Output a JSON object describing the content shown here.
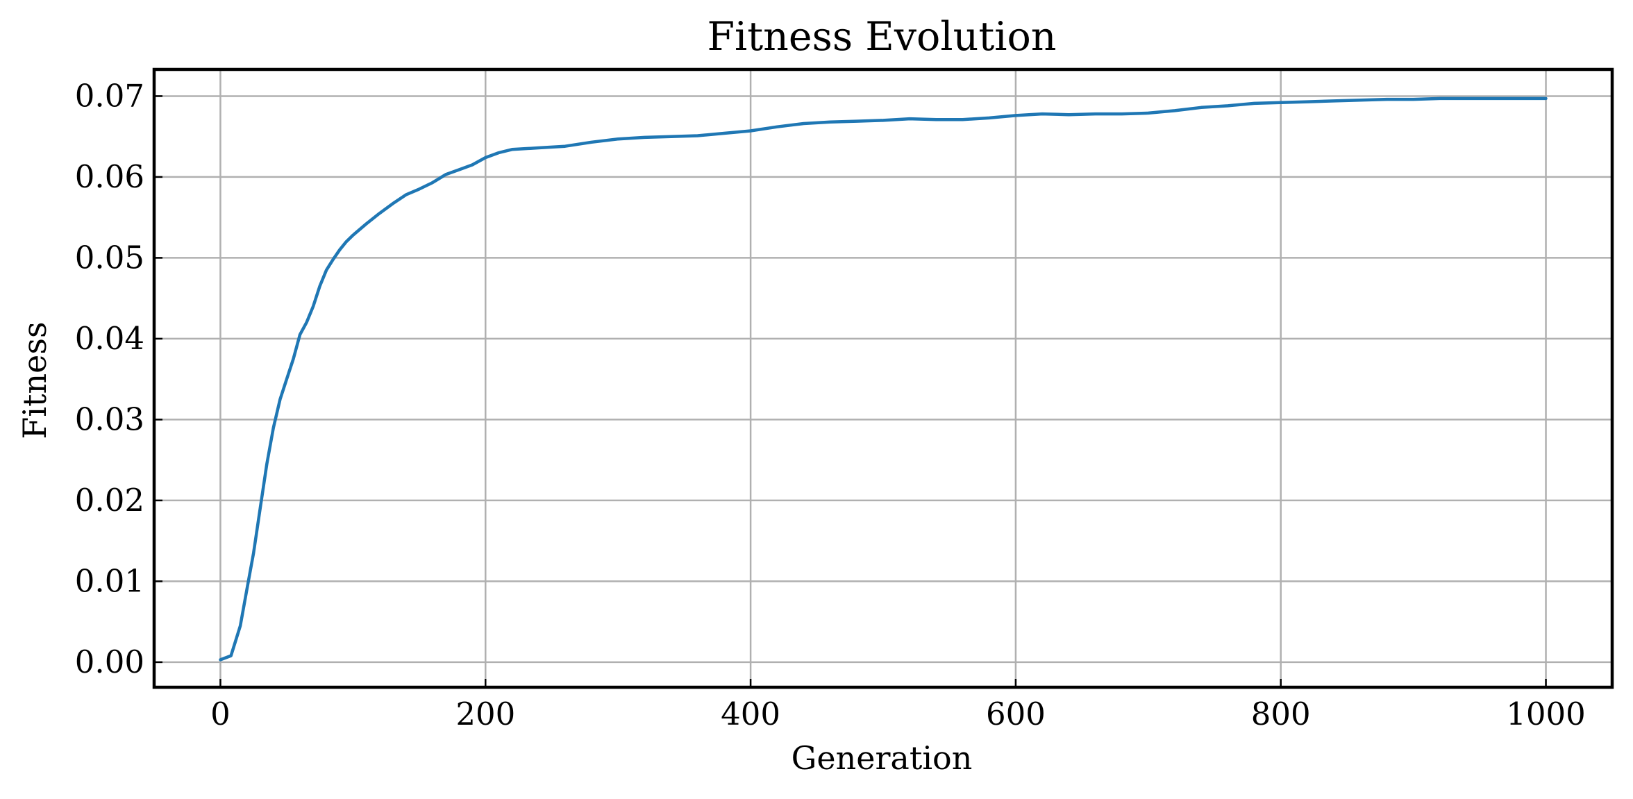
{
  "chart_data": {
    "type": "line",
    "title": "Fitness Evolution",
    "xlabel": "Generation",
    "ylabel": "Fitness",
    "xlim": [
      -50,
      1050
    ],
    "ylim": [
      -0.0031,
      0.0733
    ],
    "xticks": [
      0,
      200,
      400,
      600,
      800,
      1000
    ],
    "xtick_labels": [
      "0",
      "200",
      "400",
      "600",
      "800",
      "1000"
    ],
    "yticks": [
      0.0,
      0.01,
      0.02,
      0.03,
      0.04,
      0.05,
      0.06,
      0.07
    ],
    "ytick_labels": [
      "0.00",
      "0.01",
      "0.02",
      "0.03",
      "0.04",
      "0.05",
      "0.06",
      "0.07"
    ],
    "grid": true,
    "colors": {
      "line": "#1f77b4",
      "grid": "#b0b0b0",
      "axes": "#000000"
    },
    "series": [
      {
        "x": [
          0,
          8,
          15,
          20,
          25,
          30,
          35,
          40,
          45,
          50,
          55,
          60,
          65,
          70,
          75,
          80,
          85,
          90,
          95,
          100,
          110,
          120,
          130,
          140,
          150,
          160,
          170,
          180,
          190,
          200,
          210,
          220,
          240,
          260,
          280,
          300,
          320,
          340,
          360,
          380,
          400,
          420,
          440,
          460,
          480,
          500,
          520,
          540,
          560,
          580,
          600,
          620,
          640,
          660,
          680,
          700,
          720,
          740,
          760,
          780,
          800,
          820,
          840,
          860,
          880,
          900,
          920,
          940,
          960,
          980,
          1000
        ],
        "y": [
          0.0003,
          0.0008,
          0.0045,
          0.009,
          0.0135,
          0.019,
          0.0245,
          0.029,
          0.0325,
          0.035,
          0.0375,
          0.0405,
          0.042,
          0.044,
          0.0465,
          0.0485,
          0.0498,
          0.051,
          0.052,
          0.0528,
          0.0542,
          0.0555,
          0.0567,
          0.0578,
          0.0585,
          0.0593,
          0.0603,
          0.0609,
          0.0615,
          0.0624,
          0.063,
          0.0634,
          0.0636,
          0.0638,
          0.0643,
          0.0647,
          0.0649,
          0.065,
          0.0651,
          0.0654,
          0.0657,
          0.0662,
          0.0666,
          0.0668,
          0.0669,
          0.067,
          0.0672,
          0.0671,
          0.0671,
          0.0673,
          0.0676,
          0.0678,
          0.0677,
          0.0678,
          0.0678,
          0.0679,
          0.0682,
          0.0686,
          0.0688,
          0.0691,
          0.0692,
          0.0693,
          0.0694,
          0.0695,
          0.0696,
          0.0696,
          0.0697,
          0.0697,
          0.0697,
          0.0697,
          0.0697
        ]
      }
    ]
  }
}
